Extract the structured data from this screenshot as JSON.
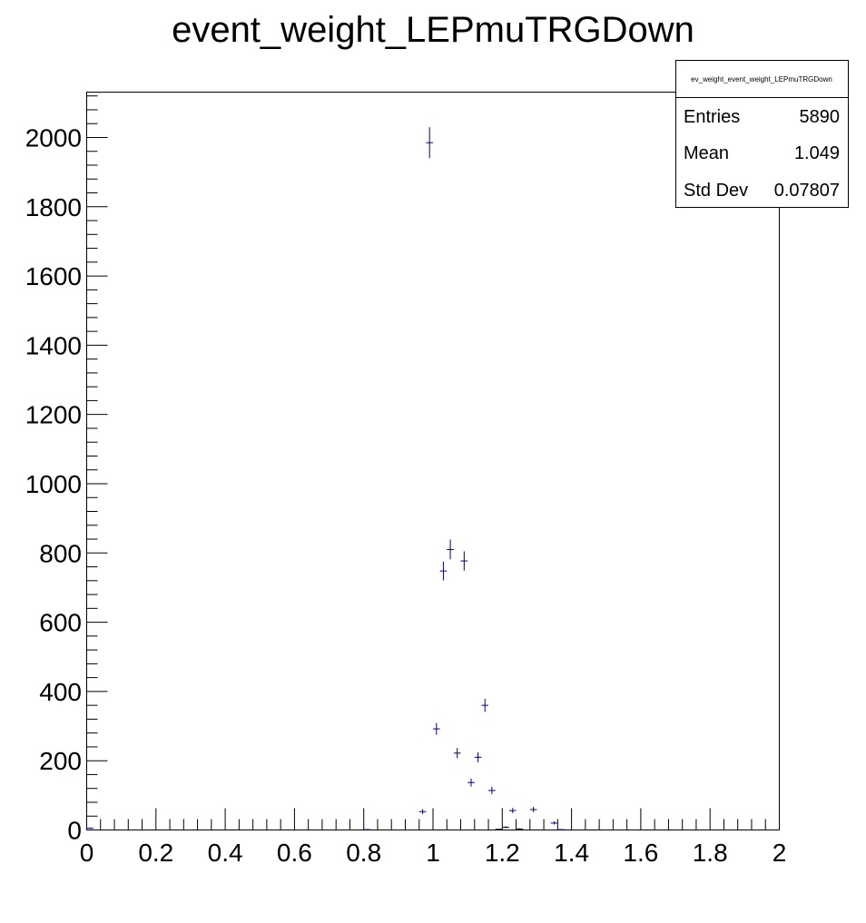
{
  "chart_data": {
    "type": "scatter",
    "title": "event_weight_LEPmuTRGDown",
    "xlabel": "",
    "ylabel": "",
    "xlim": [
      0,
      2
    ],
    "ylim": [
      0,
      2131
    ],
    "x_ticks": [
      "0",
      "0.2",
      "0.4",
      "0.6",
      "0.8",
      "1",
      "1.2",
      "1.4",
      "1.6",
      "1.8",
      "2"
    ],
    "y_ticks": [
      "0",
      "200",
      "400",
      "600",
      "800",
      "1000",
      "1200",
      "1400",
      "1600",
      "1800",
      "2000"
    ],
    "color": "#000080",
    "bin_width": 0.02,
    "points": [
      {
        "x": 0.01,
        "y": 5
      },
      {
        "x": 0.81,
        "y": 1
      },
      {
        "x": 0.97,
        "y": 53
      },
      {
        "x": 0.99,
        "y": 1985
      },
      {
        "x": 1.01,
        "y": 292
      },
      {
        "x": 1.03,
        "y": 748
      },
      {
        "x": 1.05,
        "y": 810
      },
      {
        "x": 1.07,
        "y": 222
      },
      {
        "x": 1.09,
        "y": 777
      },
      {
        "x": 1.11,
        "y": 137
      },
      {
        "x": 1.13,
        "y": 210
      },
      {
        "x": 1.15,
        "y": 360
      },
      {
        "x": 1.17,
        "y": 114
      },
      {
        "x": 1.19,
        "y": 2
      },
      {
        "x": 1.21,
        "y": 8
      },
      {
        "x": 1.23,
        "y": 56
      },
      {
        "x": 1.25,
        "y": 3
      },
      {
        "x": 1.29,
        "y": 59
      },
      {
        "x": 1.35,
        "y": 20
      },
      {
        "x": 1.37,
        "y": 1
      }
    ]
  },
  "stats_box": {
    "title": "ev_weight_event_weight_LEPmuTRGDown",
    "rows": [
      {
        "label": "Entries",
        "value": "5890"
      },
      {
        "label": "Mean",
        "value": "1.049"
      },
      {
        "label": "Std Dev",
        "value": "0.07807"
      }
    ]
  }
}
